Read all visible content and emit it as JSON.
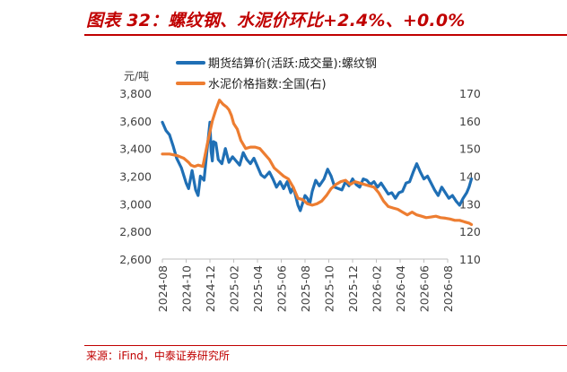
{
  "header": {
    "title": "图表 32：螺纹钢、水泥价环比+2.4%、+0.0%"
  },
  "footer": {
    "source": "来源：iFind，中泰证券研究所"
  },
  "colors": {
    "accent": "#c00000",
    "series_blue": "#1f6fb5",
    "series_orange": "#ed7d31"
  },
  "chart_data": {
    "type": "line",
    "ylabel": "元/吨",
    "ylim": [
      2600,
      3800
    ],
    "yticks": [
      "2,600",
      "2,800",
      "3,000",
      "3,200",
      "3,400",
      "3,600",
      "3,800"
    ],
    "y2lim": [
      110,
      170
    ],
    "y2ticks": [
      "110",
      "120",
      "130",
      "140",
      "150",
      "160",
      "170"
    ],
    "xticks": [
      "2024-08",
      "2024-10",
      "2024-12",
      "2025-02",
      "2025-04",
      "2025-06",
      "2025-08",
      "2025-10",
      "2025-12",
      "2026-02",
      "2026-04",
      "2026-06",
      "2026-08"
    ],
    "grid": false,
    "legend": "top",
    "series": [
      {
        "name": "期货结算价(活跃:成交量):螺纹钢",
        "axis": "left",
        "color": "#1f6fb5",
        "x": [
          0,
          0.15,
          0.3,
          0.45,
          0.6,
          0.8,
          1.0,
          1.1,
          1.25,
          1.4,
          1.5,
          1.6,
          1.75,
          1.9,
          2.0,
          2.05,
          2.1,
          2.15,
          2.25,
          2.35,
          2.5,
          2.65,
          2.8,
          2.95,
          3.1,
          3.25,
          3.4,
          3.55,
          3.7,
          3.85,
          4.0,
          4.15,
          4.3,
          4.5,
          4.65,
          4.8,
          4.95,
          5.1,
          5.25,
          5.4,
          5.5,
          5.6,
          5.7,
          5.8,
          6.0,
          6.1,
          6.2,
          6.3,
          6.45,
          6.6,
          6.8,
          6.95,
          7.1,
          7.25,
          7.4,
          7.55,
          7.7,
          7.85,
          8.0,
          8.15,
          8.3,
          8.45,
          8.6,
          8.75,
          8.9,
          9.05,
          9.2,
          9.35,
          9.5,
          9.65,
          9.8,
          9.95,
          10.1,
          10.25,
          10.4,
          10.55,
          10.7,
          10.85,
          11.0,
          11.15,
          11.3,
          11.45,
          11.6,
          11.75,
          11.9,
          12.05,
          12.2,
          12.35,
          12.5,
          12.65,
          12.8,
          12.9,
          13.0
        ],
        "values": [
          3590,
          3530,
          3500,
          3420,
          3330,
          3260,
          3150,
          3110,
          3240,
          3100,
          3060,
          3200,
          3170,
          3420,
          3590,
          3380,
          3310,
          3450,
          3440,
          3320,
          3290,
          3400,
          3300,
          3340,
          3310,
          3280,
          3370,
          3320,
          3290,
          3330,
          3270,
          3210,
          3190,
          3230,
          3180,
          3120,
          3160,
          3110,
          3160,
          3080,
          3120,
          3060,
          2990,
          2950,
          3060,
          3040,
          3000,
          3090,
          3170,
          3130,
          3180,
          3250,
          3200,
          3120,
          3110,
          3100,
          3160,
          3130,
          3180,
          3140,
          3120,
          3180,
          3170,
          3140,
          3160,
          3120,
          3150,
          3110,
          3070,
          3080,
          3040,
          3080,
          3090,
          3150,
          3160,
          3230,
          3290,
          3230,
          3180,
          3200,
          3150,
          3100,
          3060,
          3120,
          3080,
          3040,
          3060,
          3020,
          2990,
          3040,
          3080,
          3120,
          3180
        ]
      },
      {
        "name": "水泥价格指数:全国(右)",
        "axis": "right",
        "color": "#ed7d31",
        "x": [
          0,
          0.3,
          0.6,
          0.9,
          1.1,
          1.2,
          1.35,
          1.5,
          1.7,
          1.9,
          2.1,
          2.25,
          2.4,
          2.55,
          2.7,
          2.8,
          2.9,
          3.0,
          3.15,
          3.3,
          3.5,
          3.7,
          3.9,
          4.1,
          4.3,
          4.5,
          4.7,
          4.9,
          5.1,
          5.3,
          5.5,
          5.7,
          5.9,
          6.1,
          6.3,
          6.5,
          6.7,
          6.9,
          7.1,
          7.3,
          7.5,
          7.7,
          7.9,
          8.1,
          8.3,
          8.5,
          8.7,
          8.9,
          9.1,
          9.3,
          9.5,
          9.7,
          9.9,
          10.1,
          10.3,
          10.5,
          10.7,
          10.9,
          11.1,
          11.3,
          11.5,
          11.7,
          11.9,
          12.1,
          12.3,
          12.5,
          12.7,
          12.9,
          13.0
        ],
        "values": [
          148,
          148,
          147.5,
          146.5,
          145,
          144,
          143.5,
          144,
          143.5,
          152,
          160,
          164,
          167.5,
          166,
          165,
          164,
          162,
          159,
          157,
          153,
          150,
          150.5,
          150.5,
          150,
          148,
          146,
          143,
          141.5,
          140,
          139,
          136,
          132,
          131.5,
          130,
          129.5,
          130,
          131,
          133,
          135.5,
          137,
          138,
          138.5,
          137,
          138,
          137.5,
          137,
          136.5,
          136,
          134,
          131,
          129,
          128.5,
          128,
          127,
          126,
          127,
          126,
          125.5,
          125,
          125.2,
          125.5,
          125,
          124.8,
          124.5,
          124,
          124,
          123.5,
          123,
          122.5
        ]
      }
    ]
  }
}
